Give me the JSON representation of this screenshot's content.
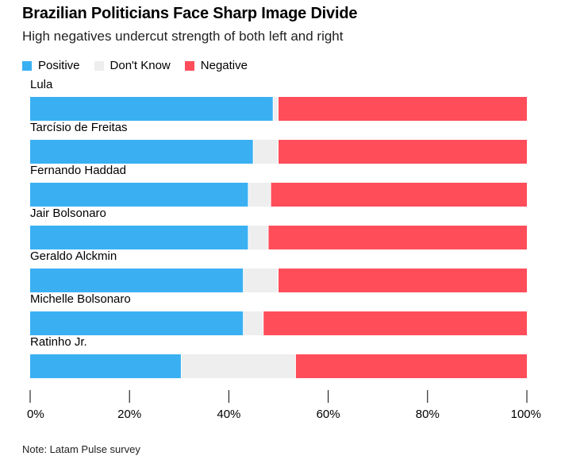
{
  "title": "Brazilian Politicians Face Sharp Image Divide",
  "subtitle": "High negatives undercut strength of both left and right",
  "note": "Note: Latam Pulse survey",
  "colors": {
    "positive": "#3ab0f3",
    "dont_know": "#eeeeee",
    "negative": "#ff4d5a"
  },
  "chart_data": {
    "type": "bar",
    "orientation": "horizontal",
    "stacked": true,
    "categories": [
      "Lula",
      "Tarcísio de Freitas",
      "Fernando Haddad",
      "Jair Bolsonaro",
      "Geraldo Alckmin",
      "Michelle Bolsonaro",
      "Ratinho Jr."
    ],
    "series": [
      {
        "name": "Positive",
        "values": [
          49,
          45,
          44,
          44,
          43,
          43,
          30.5
        ]
      },
      {
        "name": "Don't Know",
        "values": [
          1,
          5,
          4.5,
          4,
          7,
          4,
          23
        ]
      },
      {
        "name": "Negative",
        "values": [
          50,
          50,
          51.5,
          52,
          50,
          53,
          46.5
        ]
      }
    ],
    "xlim": [
      0,
      100
    ],
    "xticks": [
      "0%",
      "20%",
      "40%",
      "60%",
      "80%",
      "100%"
    ],
    "legend_position": "top-left",
    "grid": false
  }
}
